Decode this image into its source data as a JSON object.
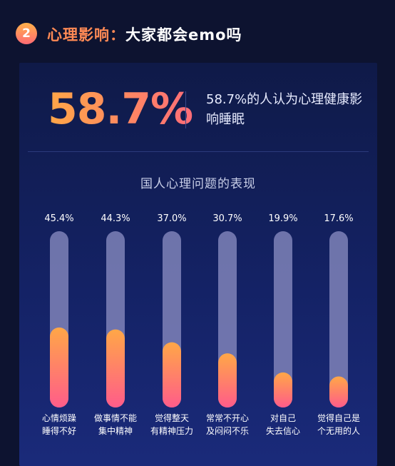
{
  "header": {
    "badge_number": "2",
    "title_accent": "心理影响：",
    "title_rest": "大家都会emo吗"
  },
  "headline": {
    "percent": "58.7%",
    "text": "58.7%的人认为心理健康影响睡眠"
  },
  "colors": {
    "accent_orange": "#ffa747",
    "accent_pink": "#ff6d78",
    "track": "#7f83b8",
    "background": "#0d1330"
  },
  "chart_data": {
    "type": "bar",
    "title": "国人心理问题的表现",
    "categories": [
      [
        "心情烦躁",
        "睡得不好"
      ],
      [
        "做事情不能",
        "集中精神"
      ],
      [
        "觉得整天",
        "有精神压力"
      ],
      [
        "常常不开心",
        "及闷闷不乐"
      ],
      [
        "对自己",
        "失去信心"
      ],
      [
        "觉得自己是",
        "个无用的人"
      ]
    ],
    "values": [
      45.4,
      44.3,
      37.0,
      30.7,
      19.9,
      17.6
    ],
    "value_labels": [
      "45.4%",
      "44.3%",
      "37.0%",
      "30.7%",
      "19.9%",
      "17.6%"
    ],
    "ylim": [
      0,
      100
    ],
    "grid": false,
    "legend": "none"
  }
}
